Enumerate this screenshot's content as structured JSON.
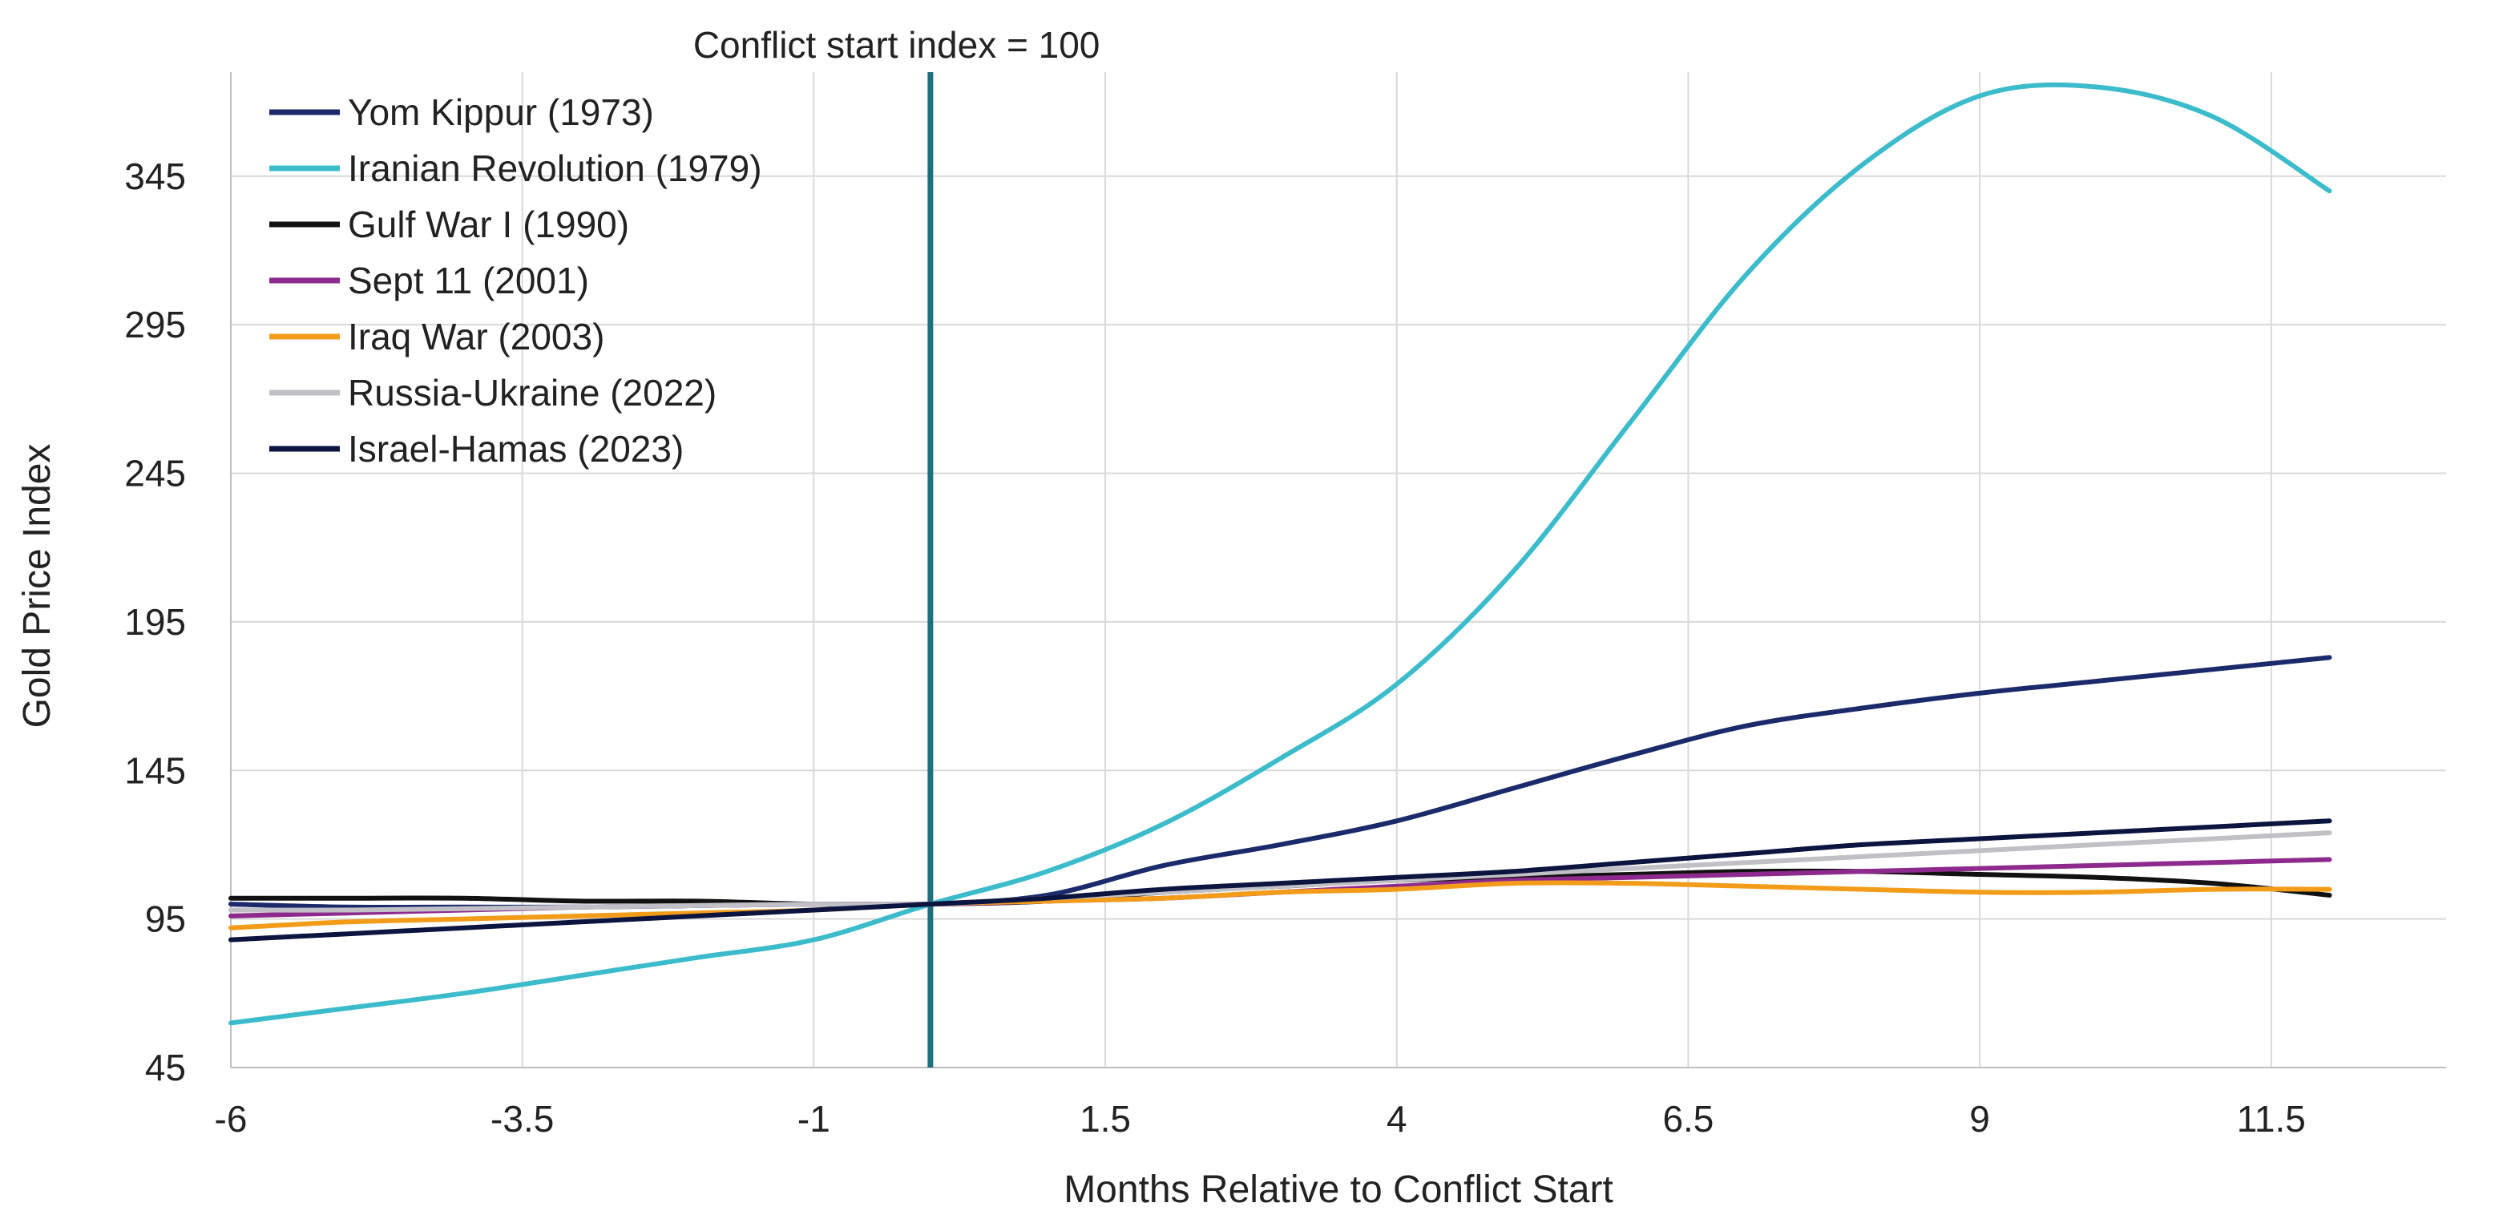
{
  "chart_data": {
    "type": "line",
    "title": "",
    "annotation": "Conflict start index = 100",
    "xlabel": "Months Relative to Conflict Start",
    "ylabel": "Gold Price Index",
    "xlim": [
      -6,
      13
    ],
    "ylim": [
      45,
      380
    ],
    "xticks": [
      -6,
      -3.5,
      -1,
      1.5,
      4,
      6.5,
      9,
      11.5
    ],
    "xtick_labels": [
      "-6",
      "-3.5",
      "-1",
      "1.5",
      "4",
      "6.5",
      "9",
      "11.5"
    ],
    "yticks": [
      45,
      95,
      145,
      195,
      245,
      295,
      345
    ],
    "ytick_labels": [
      "45",
      "95",
      "145",
      "195",
      "245",
      "295",
      "345"
    ],
    "grid": true,
    "legend_position": "top-left",
    "reference_line": {
      "x": 0,
      "color": "#1f6f7f"
    },
    "x": [
      -6,
      -5,
      -4,
      -3,
      -2,
      -1,
      0,
      1,
      2,
      3,
      4,
      5,
      6,
      7,
      8,
      9,
      10,
      11,
      12
    ],
    "series": [
      {
        "name": "Yom Kippur (1973)",
        "color": "#1b2a6b",
        "values": [
          100,
          99,
          99,
          99,
          99.5,
          100,
          100,
          103,
          113,
          120,
          128,
          139,
          150,
          160,
          166,
          171,
          175,
          179,
          183
        ]
      },
      {
        "name": "Iranian Revolution (1979)",
        "color": "#3cbccb",
        "values": [
          60,
          65,
          70,
          76,
          82,
          88,
          100,
          111,
          127,
          149,
          174,
          212,
          262,
          312,
          349,
          372,
          375,
          365,
          340
        ]
      },
      {
        "name": "Gulf War I (1990)",
        "color": "#111111",
        "values": [
          102,
          102,
          102,
          101,
          101,
          100,
          100,
          101,
          104,
          106,
          108,
          109,
          110,
          111,
          111,
          110,
          109,
          107,
          103
        ]
      },
      {
        "name": "Sept 11 (2001)",
        "color": "#8e2a8e",
        "values": [
          96,
          97,
          98,
          99,
          99.5,
          100,
          100,
          101,
          102,
          104,
          106,
          108,
          109,
          110,
          111,
          112,
          113,
          114,
          115
        ]
      },
      {
        "name": "Iraq War (2003)",
        "color": "#f39c1a",
        "values": [
          92,
          94,
          95,
          96,
          97,
          98,
          100,
          101,
          102,
          104,
          105,
          107,
          107,
          106,
          105,
          104,
          104,
          105,
          105
        ]
      },
      {
        "name": "Russia-Ukraine (2022)",
        "color": "#c0c0c6",
        "values": [
          98,
          98,
          98.5,
          99,
          99.5,
          100,
          100,
          102,
          104,
          106,
          108,
          110,
          112,
          114,
          116,
          118,
          120,
          122,
          124
        ]
      },
      {
        "name": "Israel-Hamas (2023)",
        "color": "#0c1440",
        "values": [
          88,
          90,
          92,
          94,
          96,
          98,
          100,
          102,
          105,
          107,
          109,
          111,
          114,
          117,
          120,
          122,
          124,
          126,
          128
        ]
      }
    ]
  }
}
